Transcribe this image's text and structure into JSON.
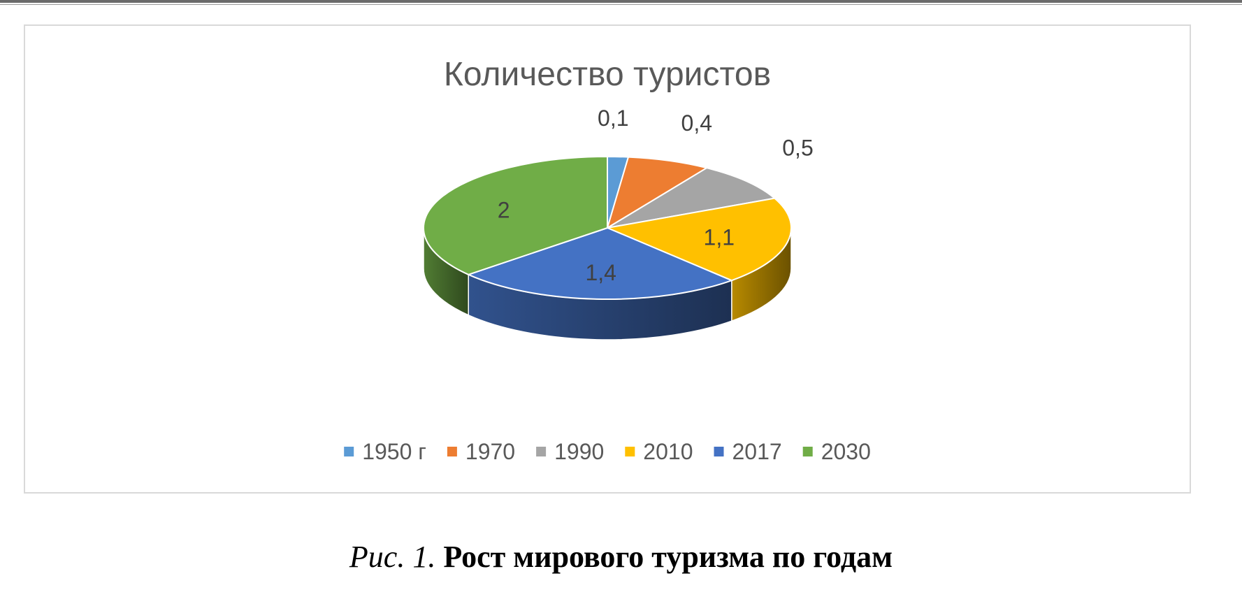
{
  "chart_data": {
    "type": "pie",
    "title": "Количество туристов",
    "categories": [
      "1950 г",
      "1970",
      "1990",
      "2010",
      "2017",
      "2030"
    ],
    "values": [
      0.1,
      0.4,
      0.5,
      1.1,
      1.4,
      2
    ],
    "value_labels": [
      "0,1",
      "0,4",
      "0,5",
      "1,1",
      "1,4",
      "2"
    ],
    "colors": [
      "#5B9BD5",
      "#ED7D31",
      "#A5A5A5",
      "#FFC000",
      "#4472C4",
      "#70AD47"
    ],
    "legend_position": "bottom",
    "style": "3d"
  },
  "caption": {
    "prefix": "Рис. 1.",
    "text": "Рост мирового туризма по годам"
  }
}
